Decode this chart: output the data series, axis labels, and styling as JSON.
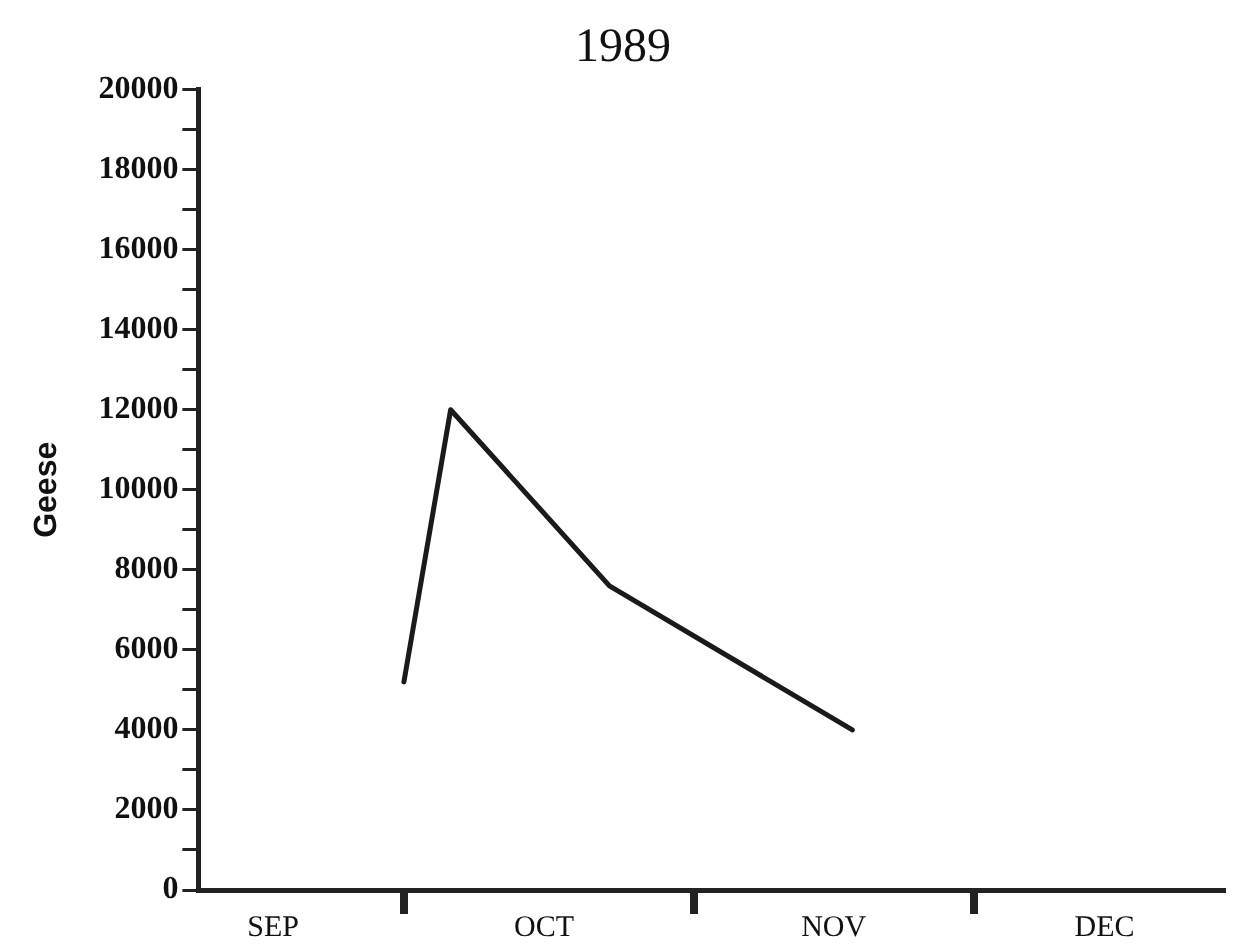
{
  "chart_data": {
    "type": "line",
    "title": "1989",
    "ylabel": "Geese",
    "x": [
      "--10-01",
      "--10-06",
      "--10-23",
      "--11-18"
    ],
    "series": [
      {
        "color": "#1a1a1a",
        "values": [
          5200,
          12000,
          7600,
          4000
        ]
      }
    ],
    "xlim": [
      "--09-09",
      "--12-28"
    ],
    "xticks": [
      {
        "value": "--09-17",
        "label": "SEP"
      },
      {
        "value": "--10-01",
        "label": null
      },
      {
        "value": "--10-16",
        "label": "OCT"
      },
      {
        "value": "--11-01",
        "label": null
      },
      {
        "value": "--11-16",
        "label": "NOV"
      },
      {
        "value": "--12-01",
        "label": null
      },
      {
        "value": "--12-15",
        "label": "DEC"
      }
    ],
    "ylim": [
      0,
      20000
    ],
    "yticks": [
      0,
      {
        "value": 1000,
        "label": null
      },
      2000,
      {
        "value": 3000,
        "label": null
      },
      4000,
      {
        "value": 5000,
        "label": null
      },
      6000,
      {
        "value": 7000,
        "label": null
      },
      8000,
      {
        "value": 9000,
        "label": null
      },
      10000,
      {
        "value": 11000,
        "label": null
      },
      12000,
      {
        "value": 13000,
        "label": null
      },
      14000,
      {
        "value": 15000,
        "label": null
      },
      16000,
      {
        "value": 17000,
        "label": null
      },
      18000,
      {
        "value": 19000,
        "label": null
      },
      20000
    ],
    "grid": false,
    "legend": false,
    "marker": "none",
    "line_style": "solid"
  }
}
